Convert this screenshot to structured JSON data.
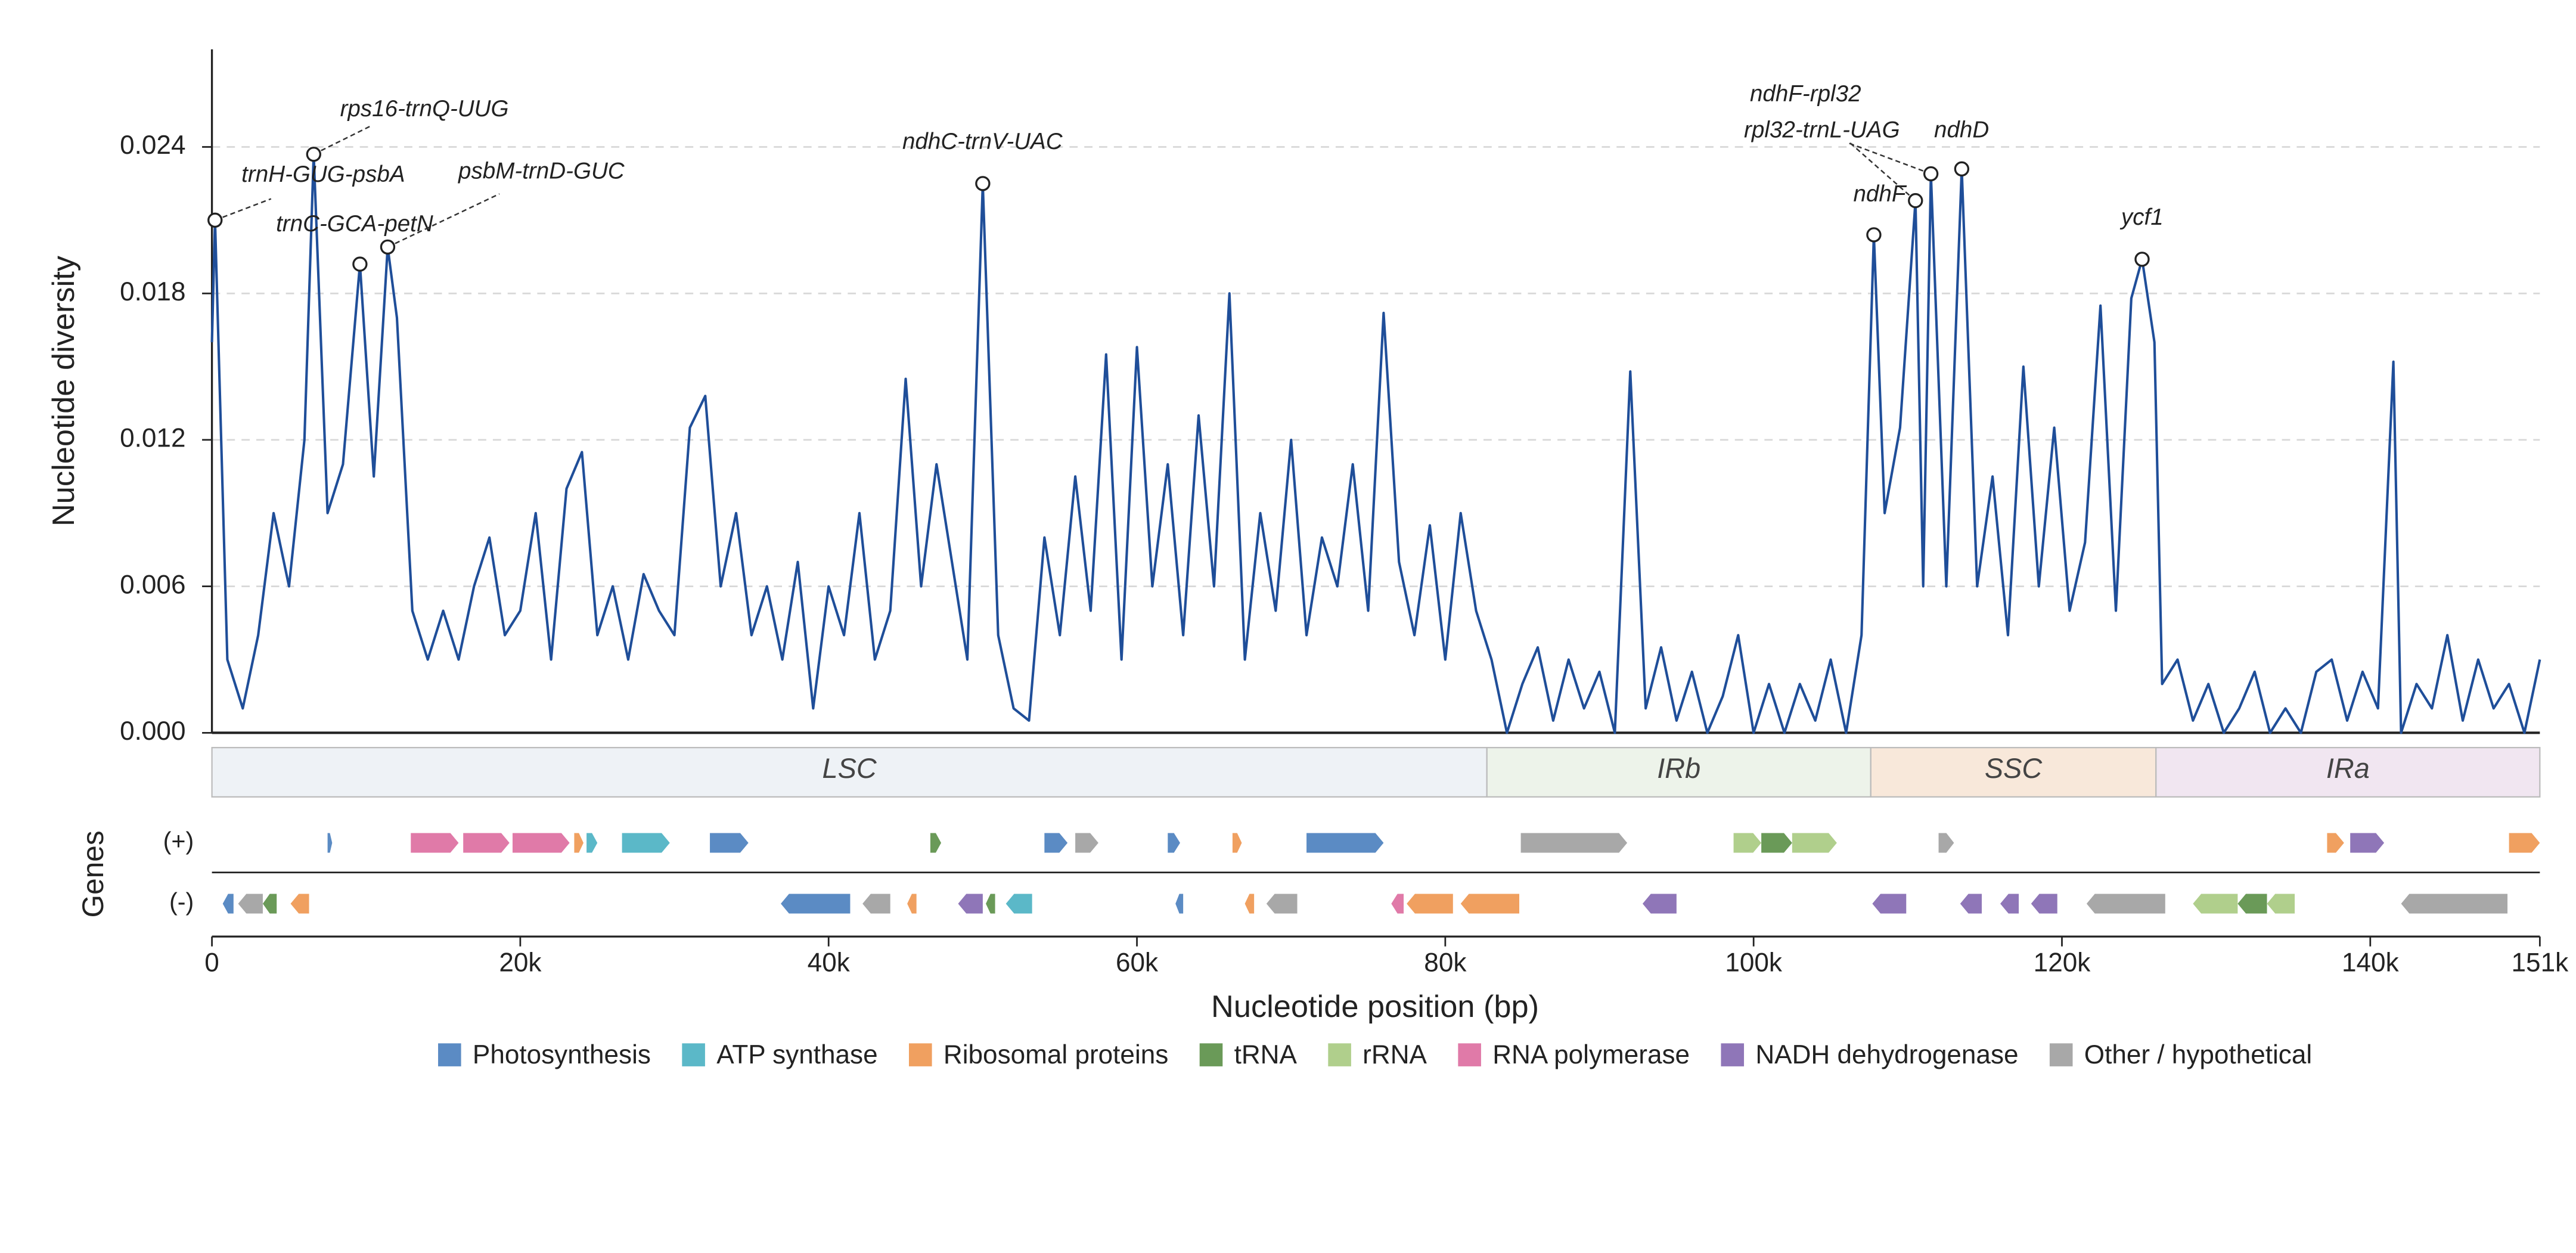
{
  "chart_data": {
    "type": "line",
    "y_label": "Nucleotide diversity",
    "x_label": "Nucleotide position (bp)",
    "color": "#1f4e99",
    "grid": true,
    "xlim": [
      0,
      151000
    ],
    "ylim": [
      0,
      0.028
    ],
    "xticks": [
      0,
      {
        "value": 20000,
        "label": "20k"
      },
      {
        "value": 40000,
        "label": "40k"
      },
      {
        "value": 60000,
        "label": "60k"
      },
      {
        "value": 80000,
        "label": "80k"
      },
      {
        "value": 100000,
        "label": "100k"
      },
      {
        "value": 120000,
        "label": "120k"
      },
      {
        "value": 140000,
        "label": "140k"
      },
      {
        "value": 151000,
        "label": "151k"
      }
    ],
    "yticks": [
      {
        "value": 0,
        "label": "0.000"
      },
      {
        "value": 0.006,
        "label": "0.006"
      },
      {
        "value": 0.012,
        "label": "0.012"
      },
      {
        "value": 0.018,
        "label": "0.018"
      },
      {
        "value": 0.024,
        "label": "0.024"
      }
    ],
    "x": [
      0,
      200,
      1000,
      2000,
      3000,
      4000,
      5000,
      6000,
      6600,
      7500,
      8500,
      9600,
      10500,
      11400,
      12000,
      13000,
      14000,
      15000,
      16000,
      17000,
      18000,
      19000,
      20000,
      21000,
      22000,
      23000,
      24000,
      25000,
      26000,
      27000,
      28000,
      29000,
      30000,
      31000,
      32000,
      33000,
      34000,
      35000,
      36000,
      37000,
      38000,
      39000,
      40000,
      41000,
      42000,
      43000,
      44000,
      45000,
      46000,
      47000,
      48000,
      49000,
      50000,
      51000,
      52000,
      53000,
      54000,
      55000,
      56000,
      57000,
      58000,
      59000,
      60000,
      61000,
      62000,
      63000,
      64000,
      65000,
      66000,
      67000,
      68000,
      69000,
      70000,
      71000,
      72000,
      73000,
      74000,
      75000,
      76000,
      77000,
      78000,
      79000,
      80000,
      81000,
      82000,
      83000,
      84000,
      85000,
      86000,
      87000,
      88000,
      89000,
      90000,
      91000,
      92000,
      93000,
      94000,
      95000,
      96000,
      97000,
      98000,
      99000,
      100000,
      101000,
      102000,
      103000,
      104000,
      105000,
      106000,
      107000,
      107800,
      108500,
      109500,
      110500,
      111000,
      111500,
      112500,
      113500,
      114500,
      115500,
      116500,
      117500,
      118500,
      119500,
      120500,
      121500,
      122500,
      123500,
      124500,
      125200,
      126000,
      126500,
      127500,
      128500,
      129500,
      130500,
      131500,
      132500,
      133500,
      134500,
      135500,
      136500,
      137500,
      138500,
      139500,
      140500,
      141500,
      142000,
      143000,
      144000,
      145000,
      146000,
      147000,
      148000,
      149000,
      150000,
      151000
    ],
    "values": [
      0.016,
      0.021,
      0.003,
      0.001,
      0.004,
      0.009,
      0.006,
      0.012,
      0.0237,
      0.009,
      0.011,
      0.0192,
      0.0105,
      0.0199,
      0.017,
      0.005,
      0.003,
      0.005,
      0.003,
      0.006,
      0.008,
      0.004,
      0.005,
      0.009,
      0.003,
      0.01,
      0.0115,
      0.004,
      0.006,
      0.003,
      0.0065,
      0.005,
      0.004,
      0.0125,
      0.0138,
      0.006,
      0.009,
      0.004,
      0.006,
      0.003,
      0.007,
      0.001,
      0.006,
      0.004,
      0.009,
      0.003,
      0.005,
      0.0145,
      0.006,
      0.011,
      0.007,
      0.003,
      0.0225,
      0.004,
      0.001,
      0.0005,
      0.008,
      0.004,
      0.0105,
      0.005,
      0.0155,
      0.003,
      0.0158,
      0.006,
      0.011,
      0.004,
      0.013,
      0.006,
      0.018,
      0.003,
      0.009,
      0.005,
      0.012,
      0.004,
      0.008,
      0.006,
      0.011,
      0.005,
      0.0172,
      0.007,
      0.004,
      0.0085,
      0.003,
      0.009,
      0.005,
      0.003,
      0.0,
      0.002,
      0.0035,
      0.0005,
      0.003,
      0.001,
      0.0025,
      0.0,
      0.0148,
      0.001,
      0.0035,
      0.0005,
      0.0025,
      0.0,
      0.0015,
      0.004,
      0.0,
      0.002,
      0.0,
      0.002,
      0.0005,
      0.003,
      0.0,
      0.004,
      0.0204,
      0.009,
      0.0125,
      0.0218,
      0.006,
      0.0229,
      0.006,
      0.0231,
      0.006,
      0.0105,
      0.004,
      0.015,
      0.006,
      0.0125,
      0.005,
      0.0078,
      0.0175,
      0.005,
      0.0178,
      0.0194,
      0.016,
      0.002,
      0.003,
      0.0005,
      0.002,
      0.0,
      0.001,
      0.0025,
      0.0,
      0.001,
      0.0,
      0.0025,
      0.003,
      0.0005,
      0.0025,
      0.001,
      0.0152,
      0.0,
      0.002,
      0.001,
      0.004,
      0.0005,
      0.003,
      0.001,
      0.002,
      0.0,
      0.003
    ],
    "annotations": [
      {
        "label": "trnH-GUG-psbA",
        "x": 200,
        "y": 0.021
      },
      {
        "label": "rps16-trnQ-UUG",
        "x": 6600,
        "y": 0.0237
      },
      {
        "label": "trnC-GCA-petN",
        "x": 9600,
        "y": 0.0192
      },
      {
        "label": "psbM-trnD-GUC",
        "x": 11400,
        "y": 0.0199
      },
      {
        "label": "ndhC-trnV-UAC",
        "x": 50000,
        "y": 0.0225
      },
      {
        "label": "ndhF",
        "x": 107800,
        "y": 0.0204
      },
      {
        "label": "rpl32-trnL-UAG",
        "x": 110500,
        "y": 0.0218
      },
      {
        "label": "ndhF-rpl32",
        "x": 111500,
        "y": 0.0229
      },
      {
        "label": "ndhD",
        "x": 113500,
        "y": 0.0231
      },
      {
        "label": "ycf1",
        "x": 125200,
        "y": 0.0194
      }
    ],
    "regions": [
      {
        "label": "LSC",
        "start": 0,
        "end": 82700,
        "color": "#eef2f6"
      },
      {
        "label": "IRb",
        "start": 82700,
        "end": 107600,
        "color": "#edf3ea"
      },
      {
        "label": "SSC",
        "start": 107600,
        "end": 126100,
        "color": "#f8e8da"
      },
      {
        "label": "IRa",
        "start": 126100,
        "end": 151000,
        "color": "#f1e6f1"
      }
    ],
    "gene_axis_label": "Genes",
    "strand_labels": [
      "(+)",
      "(-)"
    ],
    "gene_groups": [
      {
        "name": "Photosynthesis",
        "color": "#5b8bc4",
        "plus": [
          [
            7500,
            7800
          ],
          [
            32300,
            34800
          ],
          [
            54000,
            55500
          ],
          [
            62000,
            62800
          ],
          [
            71000,
            76000
          ]
        ],
        "minus": [
          [
            700,
            1400
          ],
          [
            36900,
            41400
          ],
          [
            62500,
            63000
          ]
        ]
      },
      {
        "name": "ATP synthase",
        "color": "#5bb8c8",
        "plus": [
          [
            24300,
            25000
          ],
          [
            26600,
            29700
          ]
        ],
        "minus": [
          [
            51500,
            53200
          ]
        ]
      },
      {
        "name": "Ribosomal proteins",
        "color": "#f0a060",
        "plus": [
          [
            23500,
            24100
          ],
          [
            66200,
            66800
          ],
          [
            137200,
            138300
          ],
          [
            149000,
            151000
          ]
        ],
        "minus": [
          [
            5100,
            6300
          ],
          [
            45100,
            45700
          ],
          [
            67000,
            67600
          ],
          [
            77500,
            80500
          ],
          [
            81000,
            84800
          ]
        ]
      },
      {
        "name": "tRNA",
        "color": "#6a9a58",
        "plus": [
          [
            46600,
            47300
          ],
          [
            100500,
            102500
          ]
        ],
        "minus": [
          [
            3300,
            4200
          ],
          [
            50200,
            50800
          ],
          [
            131400,
            133300
          ]
        ]
      },
      {
        "name": "rRNA",
        "color": "#b0cf8c",
        "plus": [
          [
            98700,
            100500
          ],
          [
            102500,
            105400
          ]
        ],
        "minus": [
          [
            128500,
            131400
          ],
          [
            133300,
            135100
          ]
        ]
      },
      {
        "name": "RNA polymerase",
        "color": "#e07aa8",
        "plus": [
          [
            12900,
            16000
          ],
          [
            16300,
            19300
          ],
          [
            19500,
            23200
          ]
        ],
        "minus": [
          [
            76500,
            77300
          ]
        ]
      },
      {
        "name": "NADH dehydrogenase",
        "color": "#8f76b8",
        "plus": [
          [
            138700,
            140900
          ]
        ],
        "minus": [
          [
            48400,
            50000
          ],
          [
            92800,
            95000
          ],
          [
            107700,
            109900
          ],
          [
            113400,
            114800
          ],
          [
            116000,
            117200
          ],
          [
            118000,
            119700
          ]
        ]
      },
      {
        "name": "Other / hypothetical",
        "color": "#a8a8a8",
        "plus": [
          [
            56000,
            57500
          ],
          [
            84900,
            91800
          ],
          [
            112000,
            113000
          ]
        ],
        "minus": [
          [
            1700,
            3300
          ],
          [
            42200,
            44000
          ],
          [
            68400,
            70400
          ],
          [
            121600,
            126700
          ],
          [
            142000,
            148900
          ]
        ]
      }
    ]
  }
}
